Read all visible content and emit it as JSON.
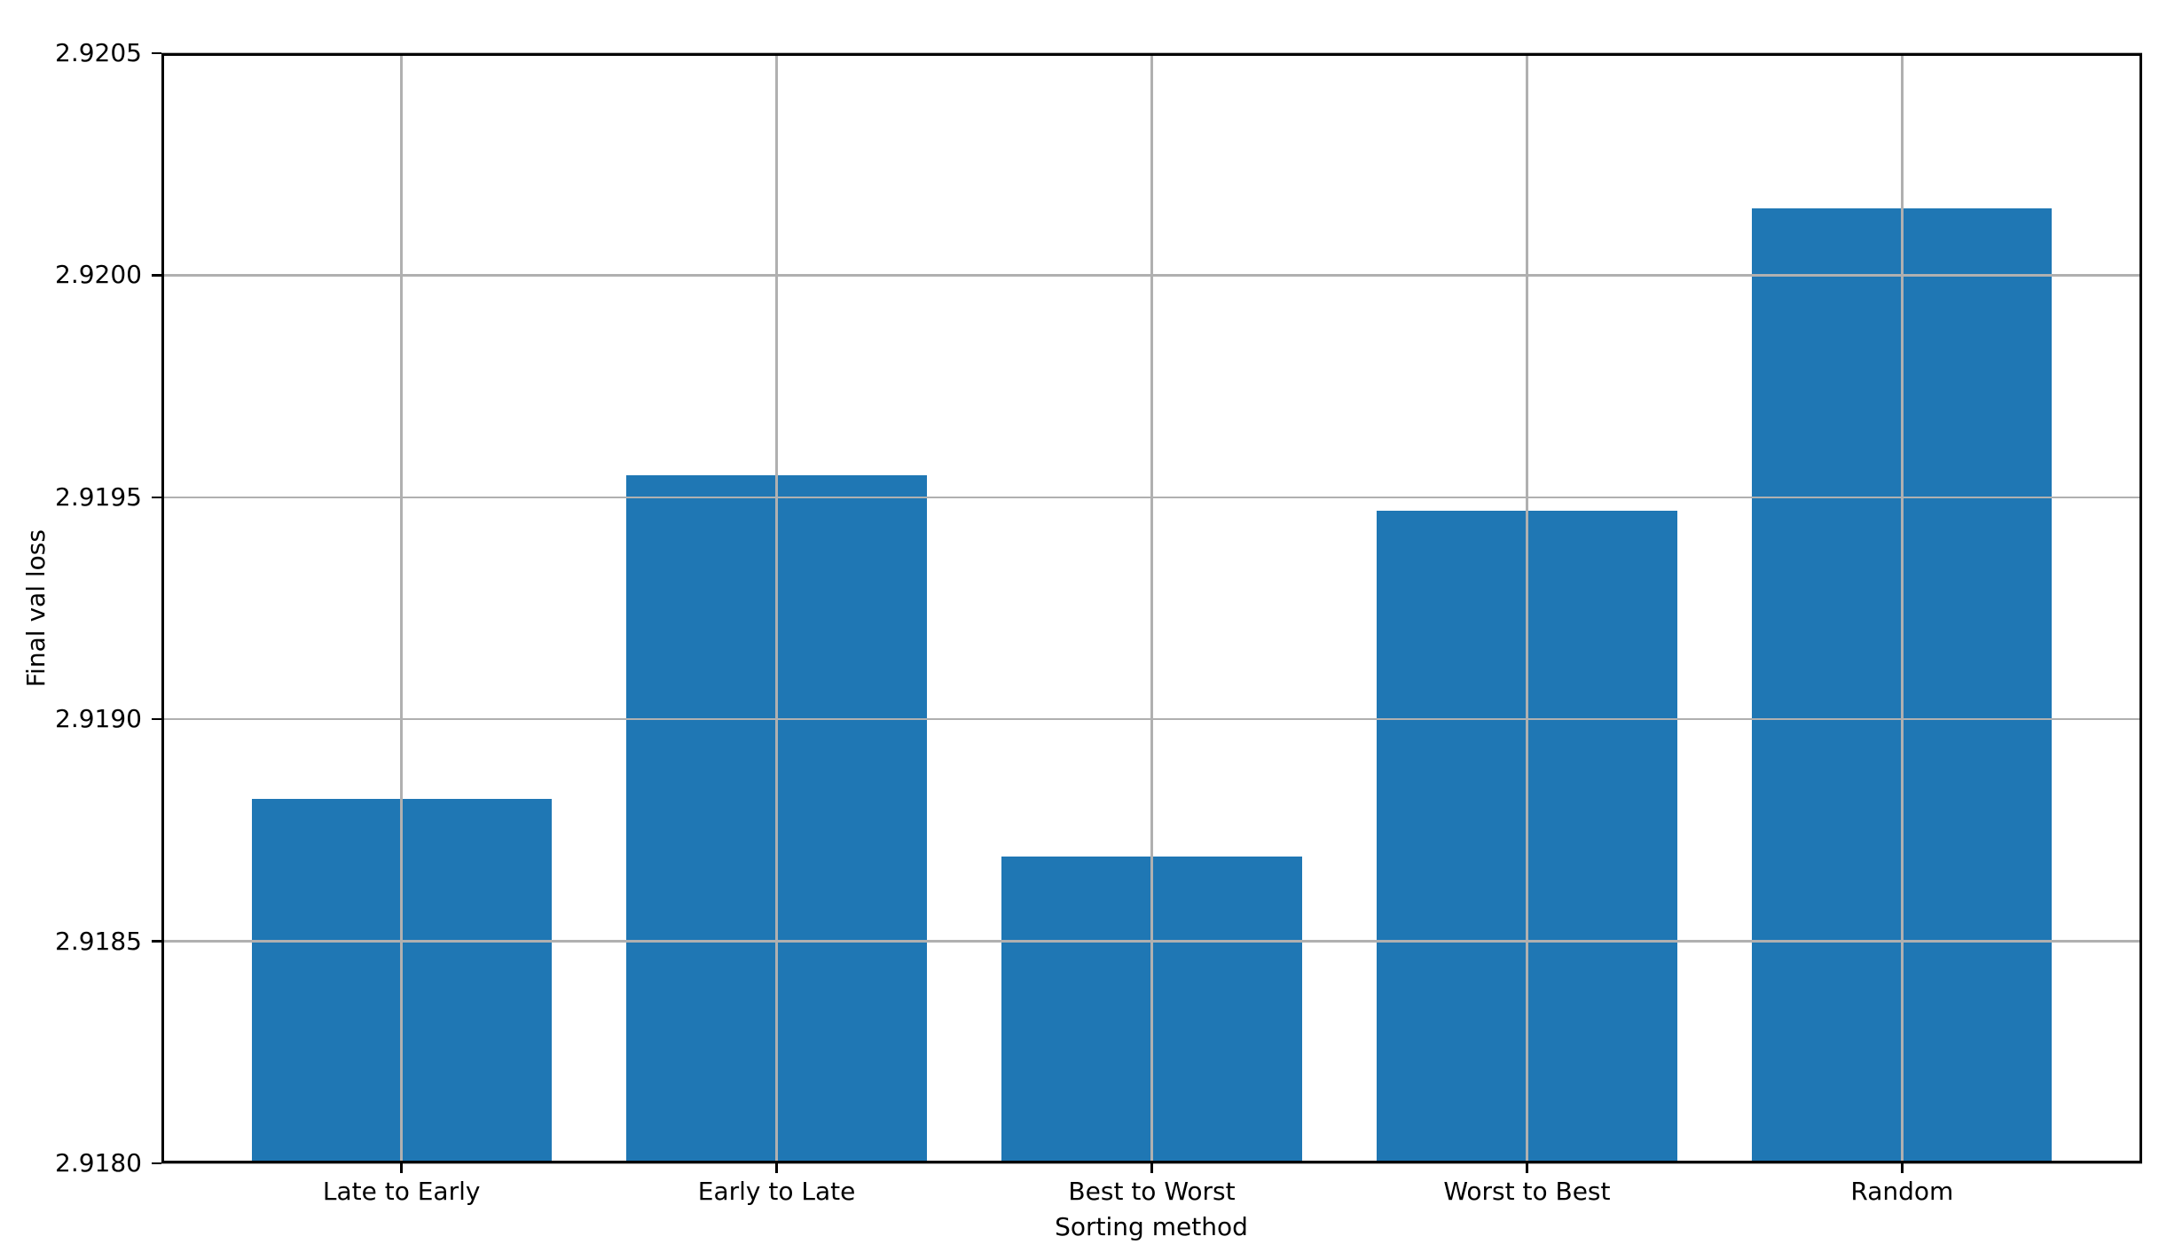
{
  "style": {
    "bar_color": "#1f77b4",
    "grid_color": "#b0b0b0",
    "spine_color": "#000000",
    "text_color": "#000000",
    "background": "#ffffff"
  },
  "chart_data": {
    "type": "bar",
    "categories": [
      "Late to Early",
      "Early to Late",
      "Best to Worst",
      "Worst to Best",
      "Random"
    ],
    "values": [
      2.91882,
      2.91955,
      2.91869,
      2.91947,
      2.92015
    ],
    "title": "",
    "xlabel": "Sorting method",
    "ylabel": "Final val loss",
    "ylim": [
      2.918,
      2.9205
    ],
    "xlim": [
      -0.64,
      4.64
    ],
    "bar_width": 0.8,
    "y_ticks": [
      2.918,
      2.9185,
      2.919,
      2.9195,
      2.92,
      2.9205
    ],
    "y_tick_labels": [
      "2.9180",
      "2.9185",
      "2.9190",
      "2.9195",
      "2.9200",
      "2.9205"
    ],
    "grid": true,
    "grid_above_bars": true,
    "legend": null
  }
}
